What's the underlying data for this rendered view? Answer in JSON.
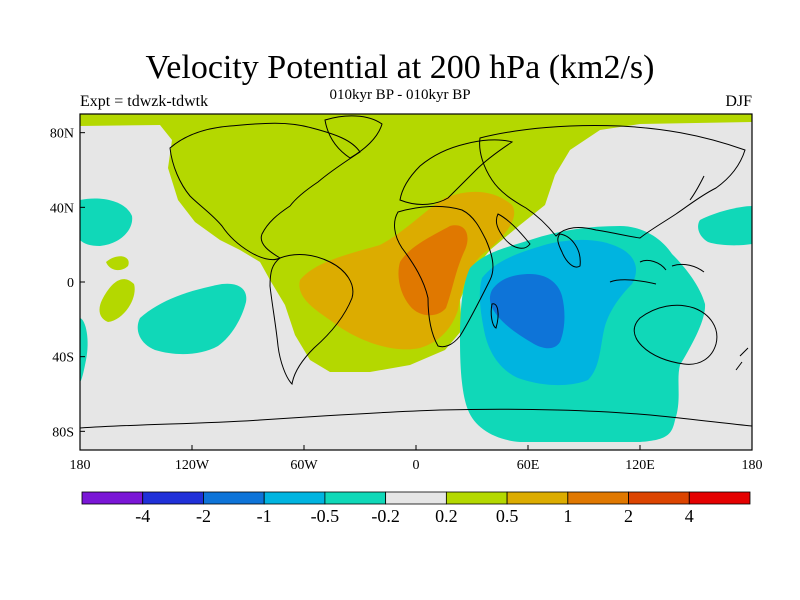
{
  "title": "Velocity Potential at 200 hPa (km2/s)",
  "subtitle": "010kyr BP - 010kyr BP",
  "left_label": "Expt = tdwzk-tdwtk",
  "right_label": "DJF",
  "map": {
    "projection": "cylindrical equidistant",
    "lon_range": [
      -180,
      180
    ],
    "lat_range": [
      -90,
      90
    ],
    "background_color": "#e6e6e6",
    "coastline_color": "#000000"
  },
  "x_ticks": [
    {
      "value": -180,
      "label": "180"
    },
    {
      "value": -120,
      "label": "120W"
    },
    {
      "value": -60,
      "label": "60W"
    },
    {
      "value": 0,
      "label": "0"
    },
    {
      "value": 60,
      "label": "60E"
    },
    {
      "value": 120,
      "label": "120E"
    },
    {
      "value": 180,
      "label": "180"
    }
  ],
  "y_ticks": [
    {
      "value": 80,
      "label": "80N"
    },
    {
      "value": 40,
      "label": "40N"
    },
    {
      "value": 0,
      "label": "0"
    },
    {
      "value": -40,
      "label": "40S"
    },
    {
      "value": -80,
      "label": "80S"
    }
  ],
  "colorbar": {
    "colors": [
      "#7a16d6",
      "#2030d8",
      "#0e74d8",
      "#00b4e0",
      "#10d8b8",
      "#e6e6e6",
      "#b4d800",
      "#dcac00",
      "#e07800",
      "#dc4400",
      "#e40000"
    ],
    "labels": [
      "-4",
      "-2",
      "-1",
      "-0.5",
      "-0.2",
      "0.2",
      "0.5",
      "1",
      "2",
      "4"
    ]
  },
  "contour_fill_colors": {
    "v_light_positive": "#b4d800",
    "v_positive": "#dcac00",
    "v_strong_positive": "#e07800",
    "v_light_negative": "#10d8b8",
    "v_negative": "#00b4e0",
    "v_strong_negative": "#0e74d8"
  }
}
